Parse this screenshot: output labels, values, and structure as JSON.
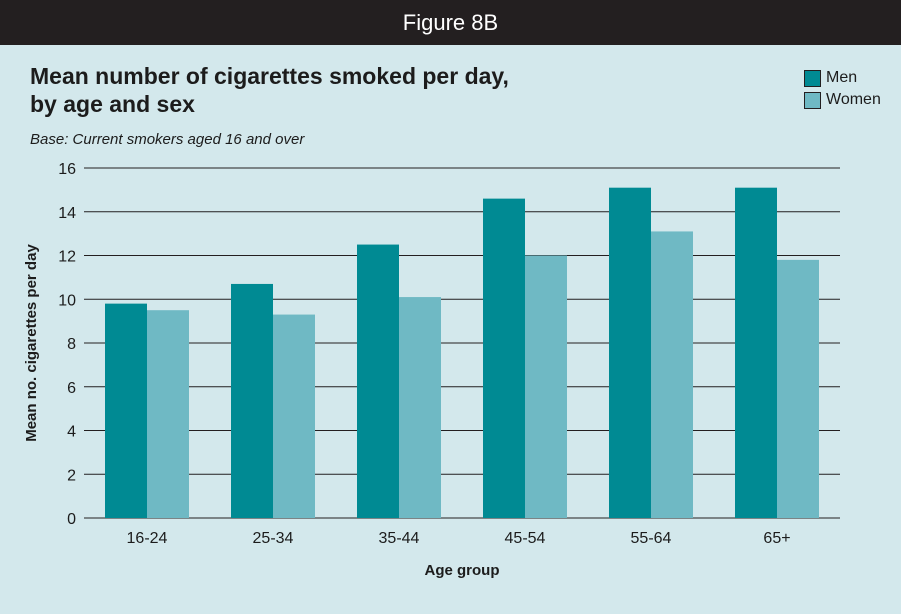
{
  "header": {
    "figure_label": "Figure 8B"
  },
  "chart_data": {
    "type": "bar",
    "title": "Mean number of cigarettes smoked per day,\nby age and sex",
    "title_lines": [
      "Mean number of cigarettes smoked per day,",
      "by age and sex"
    ],
    "subtitle": "Base: Current  smokers aged 16 and over",
    "xlabel": "Age group",
    "ylabel": "Mean no. cigarettes per day",
    "ylim": [
      0,
      16
    ],
    "yticks": [
      0,
      2,
      4,
      6,
      8,
      10,
      12,
      14,
      16
    ],
    "categories": [
      "16-24",
      "25-34",
      "35-44",
      "45-54",
      "55-64",
      "65+"
    ],
    "series": [
      {
        "name": "Men",
        "color": "#008a93",
        "values": [
          9.8,
          10.7,
          12.5,
          14.6,
          15.1,
          15.1
        ]
      },
      {
        "name": "Women",
        "color": "#6fb9c4",
        "values": [
          9.5,
          9.3,
          10.1,
          12.0,
          13.1,
          11.8
        ]
      }
    ],
    "grid": true,
    "legend_position": "top-right"
  }
}
